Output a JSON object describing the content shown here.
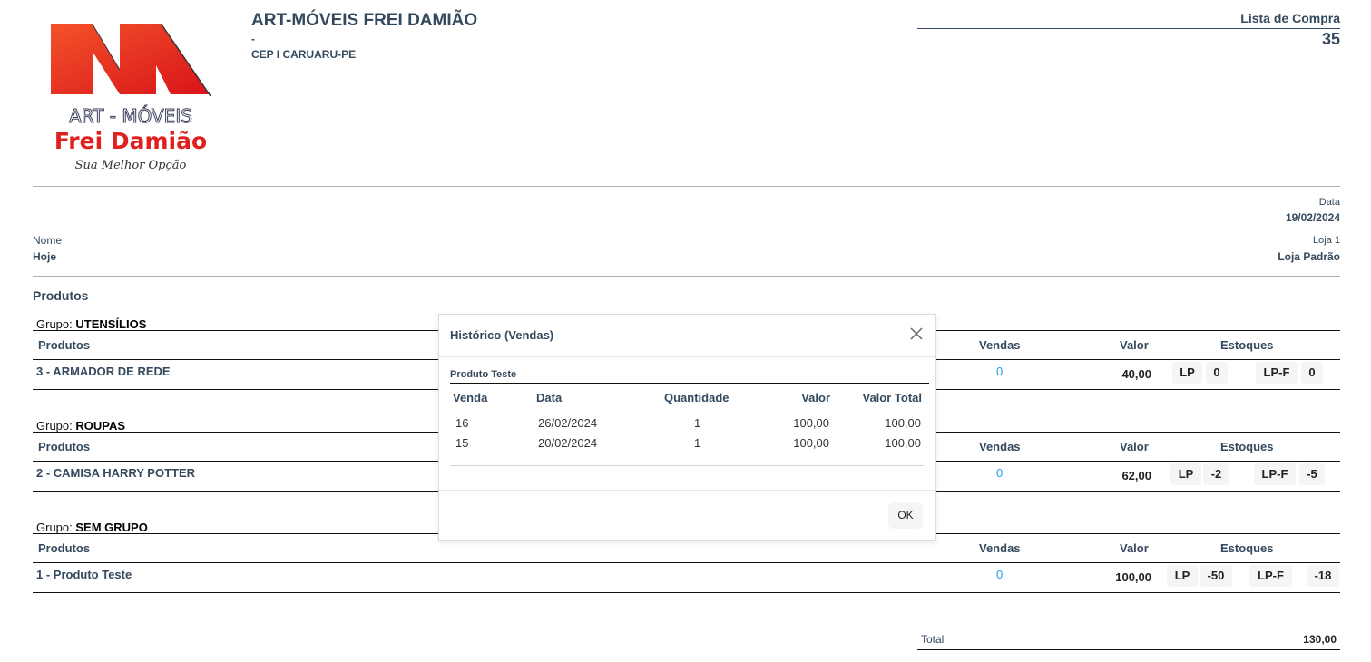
{
  "logo": {
    "text1": "ART - MÓVEIS",
    "text2": "Frei Damião",
    "text3": "Sua Melhor Opção"
  },
  "company": {
    "name": "ART-MÓVEIS FREI DAMIÃO",
    "line2": "-",
    "line3": "CEP I CARUARU-PE"
  },
  "doc": {
    "title": "Lista de Compra",
    "number": "35"
  },
  "info": {
    "data_label": "Data",
    "data_value": "19/02/2024",
    "nome_label": "Nome",
    "nome_value": "Hoje",
    "loja_label": "Loja 1",
    "loja_value": "Loja Padrão"
  },
  "section_title": "Produtos",
  "group_prefix": "Grupo:",
  "columns": {
    "produtos": "Produtos",
    "vendas": "Vendas",
    "valor": "Valor",
    "estoques": "Estoques"
  },
  "groups": [
    {
      "name": "UTENSÍLIOS",
      "product": "3 - ARMADOR DE REDE",
      "vendas": "0",
      "valor": "40,00",
      "stocks": [
        {
          "label": "LP",
          "value": "0"
        },
        {
          "label": "LP-F",
          "value": "0"
        }
      ]
    },
    {
      "name": "ROUPAS",
      "product": "2 - CAMISA HARRY POTTER",
      "vendas": "0",
      "valor": "62,00",
      "stocks": [
        {
          "label": "LP",
          "value": "-2"
        },
        {
          "label": "LP-F",
          "value": "-5"
        }
      ]
    },
    {
      "name": "SEM GRUPO",
      "product": "1 - Produto Teste",
      "vendas": "0",
      "valor": "100,00",
      "stocks": [
        {
          "label": "LP",
          "value": "-50"
        },
        {
          "label": "LP-F",
          "value": "-18"
        }
      ]
    }
  ],
  "total": {
    "label": "Total",
    "value": "130,00"
  },
  "modal": {
    "title": "Histórico (Vendas)",
    "product": "Produto Teste",
    "columns": [
      "Venda",
      "Data",
      "Quantidade",
      "Valor",
      "Valor Total"
    ],
    "rows": [
      [
        "16",
        "26/02/2024",
        "1",
        "100,00",
        "100,00"
      ],
      [
        "15",
        "20/02/2024",
        "1",
        "100,00",
        "100,00"
      ]
    ],
    "ok": "OK"
  },
  "colors": {
    "text": "#34495e",
    "link": "#1ea1e8",
    "logo_red": "#e0201c"
  }
}
